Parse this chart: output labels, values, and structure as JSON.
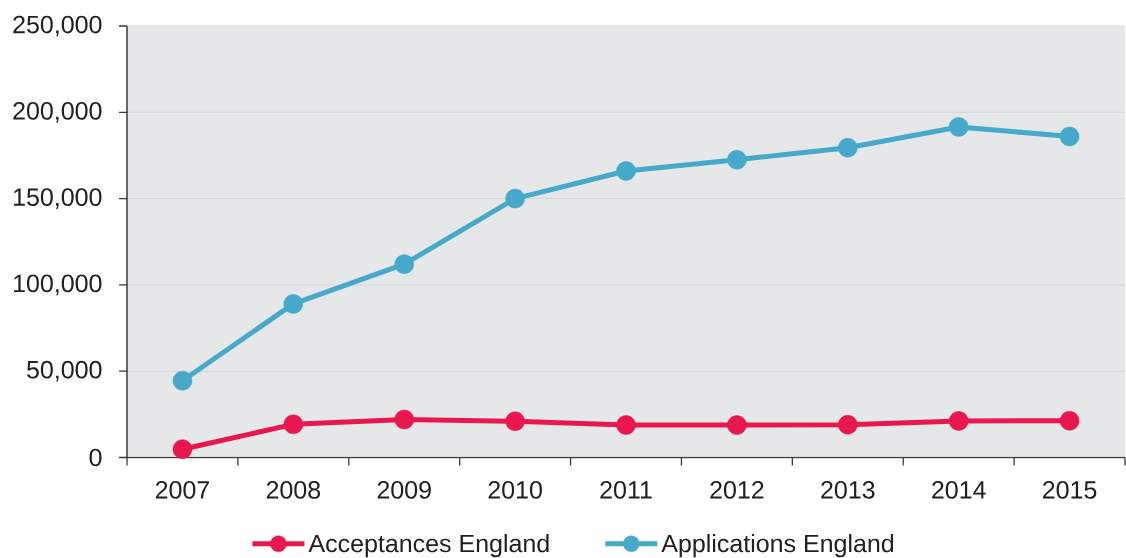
{
  "chart_data": {
    "type": "line",
    "categories": [
      "2007",
      "2008",
      "2009",
      "2010",
      "2011",
      "2012",
      "2013",
      "2014",
      "2015"
    ],
    "series": [
      {
        "name": "Acceptances England",
        "color": "#e8174f",
        "values": [
          4800,
          19200,
          22000,
          21000,
          18800,
          18800,
          19000,
          21200,
          21300
        ]
      },
      {
        "name": "Applications England",
        "color": "#46a9ca",
        "values": [
          44500,
          89000,
          112000,
          150000,
          166000,
          172500,
          179500,
          191500,
          186000
        ]
      }
    ],
    "ylim": [
      0,
      250000
    ],
    "yticks": [
      0,
      {
        "value": 50000,
        "label": "50,000"
      },
      {
        "value": 100000,
        "label": "100,000"
      },
      {
        "value": 150000,
        "label": "150,000"
      },
      {
        "value": 200000,
        "label": "200,000"
      },
      {
        "value": 250000,
        "label": "250,000"
      }
    ],
    "grid": "y",
    "legend": "bottom",
    "marker": "circle",
    "line_style": "solid"
  }
}
